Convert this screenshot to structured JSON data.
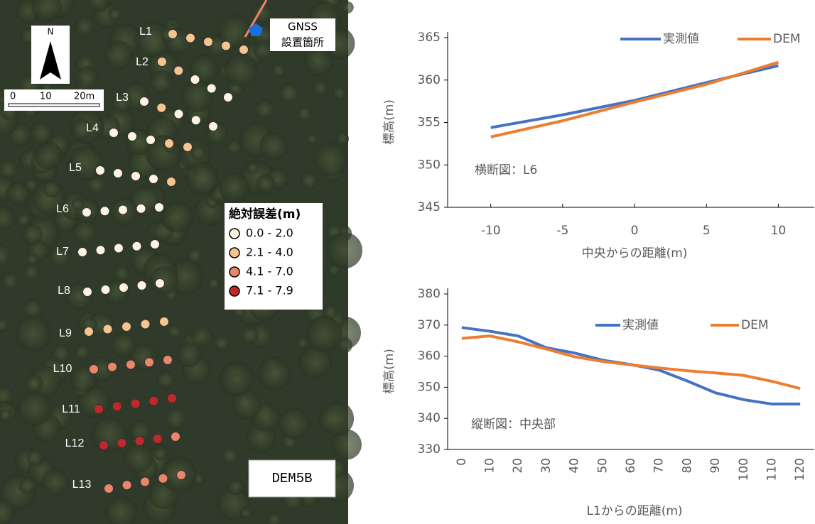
{
  "map": {
    "gnss": [
      "GNSS",
      "設置箇所"
    ],
    "north": "N",
    "scale": [
      "0",
      "10",
      "20m"
    ],
    "legend_title": "絶対誤差(m)",
    "legend": [
      {
        "label": "0.0 - 2.0",
        "color": "#fdf3e0"
      },
      {
        "label": "2.1 - 4.0",
        "color": "#f5c48f"
      },
      {
        "label": "4.1 - 7.0",
        "color": "#e8876a"
      },
      {
        "label": "7.1 - 7.9",
        "color": "#c0282a"
      }
    ],
    "model": "DEM5B",
    "rows": [
      {
        "label": "L1",
        "colors": [
          "#f5c48f",
          "#f5c48f",
          "#f5c48f",
          "#f5c48f",
          "#f5c48f"
        ]
      },
      {
        "label": "L2",
        "colors": [
          "#f5c48f",
          "#f5c48f",
          "#fdf3e0",
          "#fdf3e0",
          "#fdf3e0"
        ]
      },
      {
        "label": "L3",
        "colors": [
          "#fdf3e0",
          "#f5c48f",
          "#fdf3e0",
          "#fdf3e0",
          "#fdf3e0"
        ]
      },
      {
        "label": "L4",
        "colors": [
          "#fdf3e0",
          "#fdf3e0",
          "#fdf3e0",
          "#f5c48f",
          "#f5c48f"
        ]
      },
      {
        "label": "L5",
        "colors": [
          "#fdf3e0",
          "#fdf3e0",
          "#fdf3e0",
          "#fdf3e0",
          "#f5c48f"
        ]
      },
      {
        "label": "L6",
        "colors": [
          "#fdf3e0",
          "#fdf3e0",
          "#fdf3e0",
          "#fdf3e0",
          "#fdf3e0"
        ]
      },
      {
        "label": "L7",
        "colors": [
          "#fdf3e0",
          "#fdf3e0",
          "#fdf3e0",
          "#fdf3e0",
          "#fdf3e0"
        ]
      },
      {
        "label": "L8",
        "colors": [
          "#fdf3e0",
          "#fdf3e0",
          "#fdf3e0",
          "#fdf3e0",
          "#fdf3e0"
        ]
      },
      {
        "label": "L9",
        "colors": [
          "#f5c48f",
          "#f5c48f",
          "#f5c48f",
          "#f5c48f",
          "#f5c48f"
        ]
      },
      {
        "label": "L10",
        "colors": [
          "#e8876a",
          "#e8876a",
          "#e8876a",
          "#e8876a",
          "#e8876a"
        ]
      },
      {
        "label": "L11",
        "colors": [
          "#c0282a",
          "#c0282a",
          "#c0282a",
          "#c0282a",
          "#c0282a"
        ]
      },
      {
        "label": "L12",
        "colors": [
          "#c0282a",
          "#c0282a",
          "#c0282a",
          "#c0282a",
          "#e8876a"
        ]
      },
      {
        "label": "L13",
        "colors": [
          "#e8876a",
          "#e8876a",
          "#e8876a",
          "#e8876a",
          "#e8876a"
        ]
      }
    ]
  },
  "chart_data": [
    {
      "type": "line",
      "annotation": "横断図：L6",
      "x_label": "中央からの距離(m)",
      "y_label": "標高(m)",
      "x": [
        -10,
        -5,
        0,
        5,
        10
      ],
      "series": [
        {
          "name": "実測値",
          "color": "#4472c4",
          "values": [
            354.4,
            355.9,
            357.6,
            359.7,
            361.7
          ]
        },
        {
          "name": "DEM",
          "color": "#ed7d31",
          "values": [
            353.3,
            355.2,
            357.4,
            359.5,
            362.1
          ]
        }
      ],
      "xlim": [
        -13,
        12.5
      ],
      "xticks": [
        -10,
        -5,
        0,
        5,
        10
      ],
      "ylim": [
        345,
        365
      ],
      "yticks": [
        345,
        350,
        355,
        360,
        365
      ],
      "grid": false
    },
    {
      "type": "line",
      "annotation": "縦断図：中央部",
      "x_label": "L1からの距離(m)",
      "y_label": "標高(m)",
      "categories": [
        "0",
        "10",
        "20",
        "30",
        "40",
        "50",
        "60",
        "70",
        "80",
        "90",
        "100",
        "110",
        "120"
      ],
      "series": [
        {
          "name": "実測値",
          "color": "#4472c4",
          "values": [
            369.2,
            368,
            366.5,
            362.7,
            361,
            358.7,
            357.3,
            355.5,
            352,
            348.2,
            346,
            344.6,
            344.6
          ]
        },
        {
          "name": "DEM",
          "color": "#ed7d31",
          "values": [
            365.7,
            366.5,
            364.6,
            362.3,
            359.8,
            358.3,
            357.2,
            356.2,
            355.3,
            354.6,
            353.8,
            351.9,
            349.6
          ]
        }
      ],
      "ylim": [
        330,
        380
      ],
      "yticks": [
        330,
        340,
        350,
        360,
        370,
        380
      ],
      "grid": false
    }
  ]
}
